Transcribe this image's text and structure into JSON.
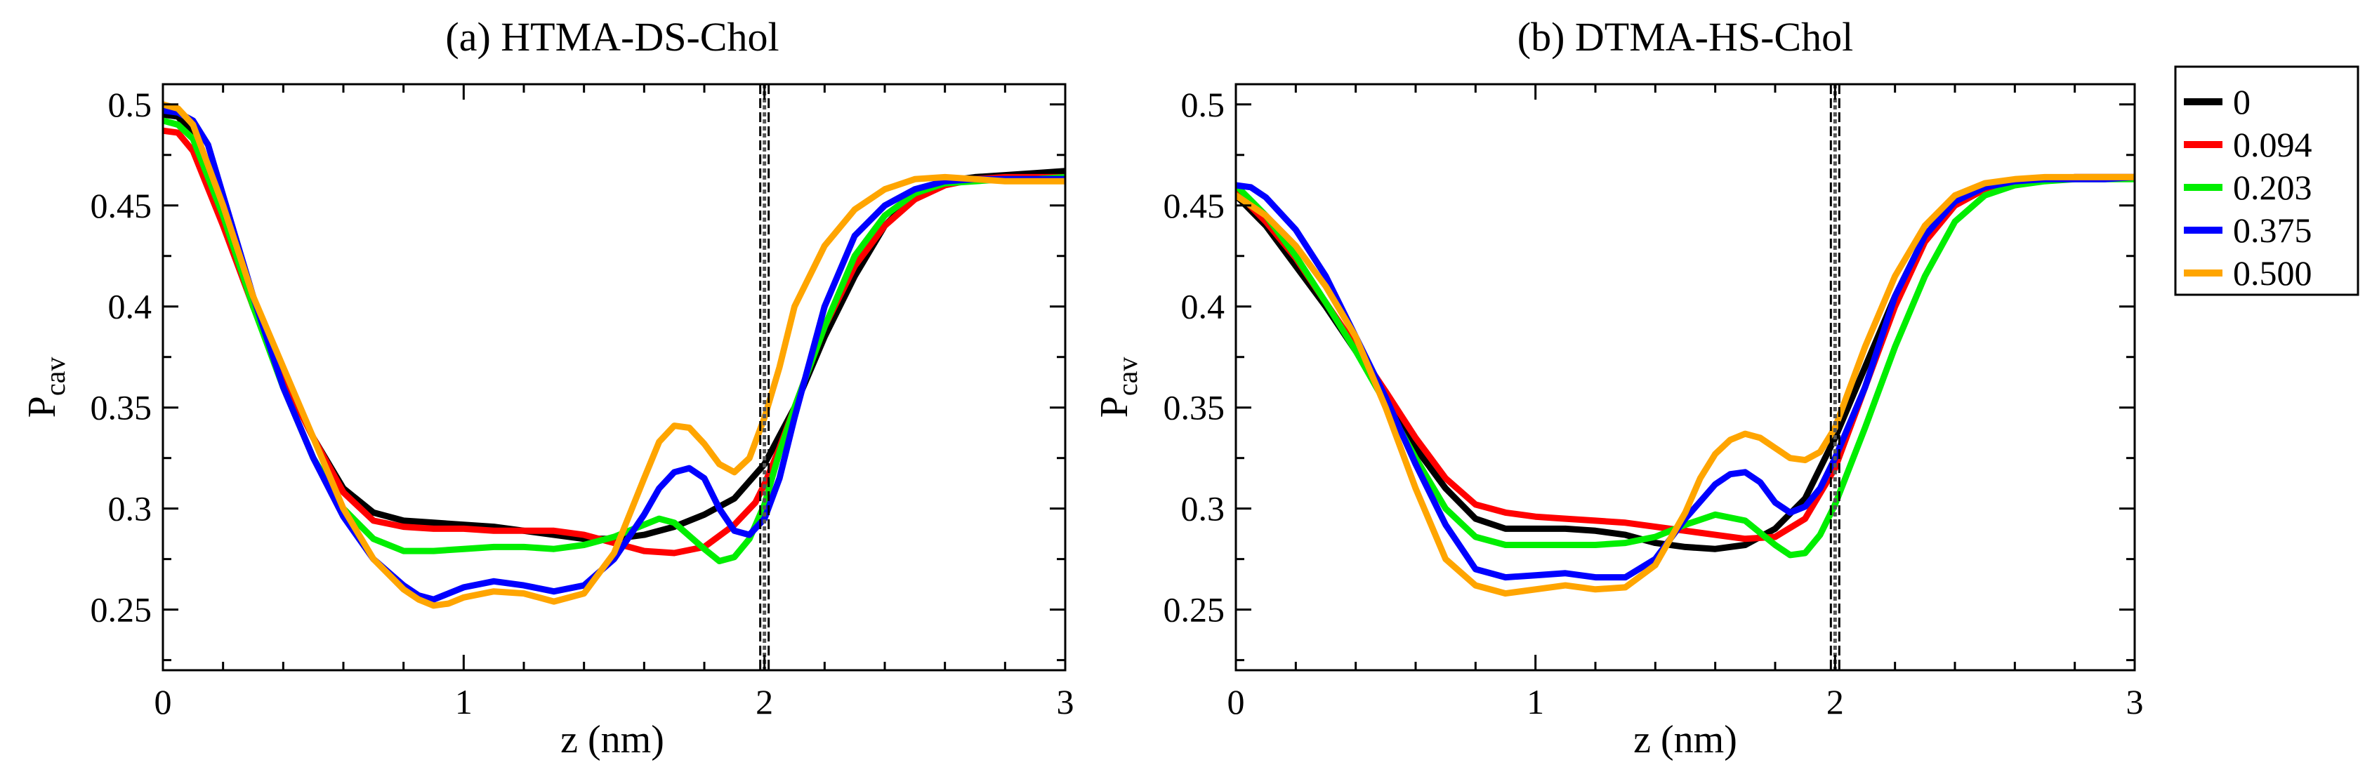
{
  "chart_data": [
    {
      "type": "line",
      "title": "(a) HTMA-DS-Chol",
      "xlabel": "z (nm)",
      "ylabel_main": "P",
      "ylabel_sub": "cav",
      "xlim": [
        0,
        3
      ],
      "ylim": [
        0.22,
        0.51
      ],
      "xticks": [
        0,
        1,
        2,
        3
      ],
      "xtick_labels": [
        "0",
        "1",
        "2",
        "3"
      ],
      "yticks": [
        0.25,
        0.3,
        0.35,
        0.4,
        0.45,
        0.5
      ],
      "ytick_labels": [
        "0.25",
        "0.3",
        "0.35",
        "0.4",
        "0.45",
        "0.5"
      ],
      "vline_x": 2.0,
      "series": [
        {
          "name": "0",
          "color": "#000000",
          "x": [
            0,
            0.05,
            0.1,
            0.2,
            0.3,
            0.4,
            0.5,
            0.6,
            0.7,
            0.8,
            0.9,
            1.0,
            1.1,
            1.2,
            1.3,
            1.4,
            1.5,
            1.6,
            1.7,
            1.8,
            1.9,
            2.0,
            2.1,
            2.2,
            2.3,
            2.4,
            2.5,
            2.6,
            2.7,
            2.8,
            2.9,
            3.0
          ],
          "y": [
            0.495,
            0.494,
            0.485,
            0.445,
            0.4,
            0.365,
            0.335,
            0.31,
            0.298,
            0.294,
            0.293,
            0.292,
            0.291,
            0.289,
            0.287,
            0.285,
            0.285,
            0.287,
            0.291,
            0.297,
            0.305,
            0.322,
            0.35,
            0.385,
            0.415,
            0.44,
            0.455,
            0.462,
            0.464,
            0.465,
            0.466,
            0.467
          ]
        },
        {
          "name": "0.094",
          "color": "#ff0000",
          "x": [
            0,
            0.05,
            0.1,
            0.2,
            0.3,
            0.4,
            0.5,
            0.6,
            0.7,
            0.8,
            0.9,
            1.0,
            1.1,
            1.2,
            1.3,
            1.4,
            1.5,
            1.6,
            1.7,
            1.8,
            1.9,
            1.97,
            2.0,
            2.05,
            2.1,
            2.2,
            2.3,
            2.4,
            2.5,
            2.6,
            2.7,
            2.8,
            2.9,
            3.0
          ],
          "y": [
            0.487,
            0.486,
            0.477,
            0.44,
            0.4,
            0.365,
            0.335,
            0.308,
            0.294,
            0.291,
            0.29,
            0.29,
            0.289,
            0.289,
            0.289,
            0.287,
            0.283,
            0.279,
            0.278,
            0.281,
            0.292,
            0.303,
            0.312,
            0.33,
            0.35,
            0.39,
            0.42,
            0.44,
            0.453,
            0.46,
            0.463,
            0.464,
            0.464,
            0.464
          ]
        },
        {
          "name": "0.203",
          "color": "#00ee00",
          "x": [
            0,
            0.05,
            0.1,
            0.2,
            0.3,
            0.4,
            0.5,
            0.6,
            0.7,
            0.8,
            0.9,
            1.0,
            1.1,
            1.2,
            1.3,
            1.4,
            1.5,
            1.6,
            1.65,
            1.7,
            1.8,
            1.85,
            1.9,
            1.95,
            2.0,
            2.05,
            2.1,
            2.2,
            2.3,
            2.4,
            2.5,
            2.6,
            2.7,
            2.8,
            2.9,
            3.0
          ],
          "y": [
            0.492,
            0.49,
            0.483,
            0.445,
            0.4,
            0.36,
            0.325,
            0.3,
            0.285,
            0.279,
            0.279,
            0.28,
            0.281,
            0.281,
            0.28,
            0.282,
            0.286,
            0.292,
            0.295,
            0.293,
            0.28,
            0.274,
            0.276,
            0.285,
            0.302,
            0.328,
            0.35,
            0.39,
            0.425,
            0.445,
            0.456,
            0.461,
            0.462,
            0.463,
            0.463,
            0.464
          ]
        },
        {
          "name": "0.375",
          "color": "#0000ff",
          "x": [
            0,
            0.05,
            0.1,
            0.15,
            0.2,
            0.3,
            0.4,
            0.5,
            0.6,
            0.7,
            0.8,
            0.85,
            0.9,
            0.95,
            1.0,
            1.1,
            1.2,
            1.3,
            1.4,
            1.5,
            1.6,
            1.65,
            1.7,
            1.75,
            1.8,
            1.85,
            1.9,
            1.95,
            2.0,
            2.05,
            2.1,
            2.2,
            2.3,
            2.4,
            2.5,
            2.6,
            2.7,
            2.8,
            2.9,
            3.0
          ],
          "y": [
            0.497,
            0.496,
            0.492,
            0.48,
            0.455,
            0.405,
            0.36,
            0.325,
            0.296,
            0.275,
            0.262,
            0.257,
            0.255,
            0.258,
            0.261,
            0.264,
            0.262,
            0.259,
            0.262,
            0.275,
            0.297,
            0.31,
            0.318,
            0.32,
            0.315,
            0.3,
            0.289,
            0.287,
            0.295,
            0.315,
            0.345,
            0.4,
            0.435,
            0.45,
            0.458,
            0.462,
            0.463,
            0.463,
            0.463,
            0.463
          ]
        },
        {
          "name": "0.500",
          "color": "#ffa500",
          "x": [
            0,
            0.05,
            0.1,
            0.2,
            0.3,
            0.4,
            0.5,
            0.6,
            0.7,
            0.8,
            0.85,
            0.9,
            0.95,
            1.0,
            1.1,
            1.2,
            1.3,
            1.4,
            1.5,
            1.6,
            1.65,
            1.7,
            1.75,
            1.8,
            1.85,
            1.9,
            1.95,
            2.0,
            2.05,
            2.1,
            2.2,
            2.3,
            2.4,
            2.5,
            2.6,
            2.7,
            2.8,
            2.9,
            3.0
          ],
          "y": [
            0.5,
            0.498,
            0.49,
            0.45,
            0.405,
            0.37,
            0.335,
            0.3,
            0.275,
            0.26,
            0.255,
            0.252,
            0.253,
            0.256,
            0.259,
            0.258,
            0.254,
            0.258,
            0.278,
            0.315,
            0.333,
            0.341,
            0.34,
            0.332,
            0.322,
            0.318,
            0.325,
            0.345,
            0.37,
            0.4,
            0.43,
            0.448,
            0.458,
            0.463,
            0.464,
            0.463,
            0.462,
            0.462,
            0.462
          ]
        }
      ]
    },
    {
      "type": "line",
      "title": "(b) DTMA-HS-Chol",
      "xlabel": "z (nm)",
      "ylabel_main": "P",
      "ylabel_sub": "cav",
      "xlim": [
        0,
        3
      ],
      "ylim": [
        0.22,
        0.51
      ],
      "xticks": [
        0,
        1,
        2,
        3
      ],
      "xtick_labels": [
        "0",
        "1",
        "2",
        "3"
      ],
      "yticks": [
        0.25,
        0.3,
        0.35,
        0.4,
        0.45,
        0.5
      ],
      "ytick_labels": [
        "0.25",
        "0.3",
        "0.35",
        "0.4",
        "0.45",
        "0.5"
      ],
      "vline_x": 2.0,
      "series": [
        {
          "name": "0",
          "color": "#000000",
          "x": [
            0,
            0.1,
            0.2,
            0.3,
            0.4,
            0.5,
            0.6,
            0.7,
            0.8,
            0.9,
            1.0,
            1.1,
            1.2,
            1.3,
            1.4,
            1.5,
            1.6,
            1.7,
            1.8,
            1.9,
            2.0,
            2.1,
            2.2,
            2.3,
            2.4,
            2.5,
            2.6,
            2.7,
            2.8,
            2.9,
            3.0
          ],
          "y": [
            0.455,
            0.44,
            0.42,
            0.4,
            0.378,
            0.357,
            0.33,
            0.31,
            0.295,
            0.29,
            0.29,
            0.29,
            0.289,
            0.287,
            0.283,
            0.281,
            0.28,
            0.282,
            0.29,
            0.305,
            0.335,
            0.37,
            0.405,
            0.435,
            0.452,
            0.459,
            0.462,
            0.463,
            0.464,
            0.464,
            0.464
          ]
        },
        {
          "name": "0.094",
          "color": "#ff0000",
          "x": [
            0,
            0.1,
            0.2,
            0.3,
            0.4,
            0.5,
            0.6,
            0.7,
            0.8,
            0.9,
            1.0,
            1.1,
            1.2,
            1.3,
            1.4,
            1.5,
            1.6,
            1.7,
            1.8,
            1.9,
            2.0,
            2.1,
            2.2,
            2.3,
            2.4,
            2.5,
            2.6,
            2.7,
            2.8,
            2.9,
            3.0
          ],
          "y": [
            0.457,
            0.442,
            0.424,
            0.402,
            0.38,
            0.358,
            0.335,
            0.315,
            0.302,
            0.298,
            0.296,
            0.295,
            0.294,
            0.293,
            0.291,
            0.289,
            0.287,
            0.285,
            0.286,
            0.295,
            0.32,
            0.36,
            0.4,
            0.432,
            0.45,
            0.458,
            0.462,
            0.463,
            0.464,
            0.464,
            0.464
          ]
        },
        {
          "name": "0.203",
          "color": "#00ee00",
          "x": [
            0,
            0.1,
            0.2,
            0.3,
            0.4,
            0.5,
            0.6,
            0.7,
            0.8,
            0.9,
            1.0,
            1.1,
            1.2,
            1.3,
            1.4,
            1.5,
            1.6,
            1.7,
            1.8,
            1.85,
            1.9,
            1.95,
            2.0,
            2.1,
            2.2,
            2.3,
            2.4,
            2.5,
            2.6,
            2.7,
            2.8,
            2.9,
            3.0
          ],
          "y": [
            0.46,
            0.445,
            0.425,
            0.402,
            0.378,
            0.352,
            0.325,
            0.3,
            0.286,
            0.282,
            0.282,
            0.282,
            0.282,
            0.283,
            0.286,
            0.292,
            0.297,
            0.294,
            0.282,
            0.277,
            0.278,
            0.287,
            0.302,
            0.34,
            0.38,
            0.415,
            0.442,
            0.455,
            0.46,
            0.462,
            0.463,
            0.463,
            0.463
          ]
        },
        {
          "name": "0.375",
          "color": "#0000ff",
          "x": [
            0,
            0.05,
            0.1,
            0.2,
            0.3,
            0.4,
            0.5,
            0.6,
            0.7,
            0.8,
            0.9,
            1.0,
            1.1,
            1.2,
            1.3,
            1.4,
            1.5,
            1.6,
            1.65,
            1.7,
            1.75,
            1.8,
            1.85,
            1.9,
            1.95,
            2.0,
            2.1,
            2.2,
            2.3,
            2.4,
            2.5,
            2.6,
            2.7,
            2.8,
            2.9,
            3.0
          ],
          "y": [
            0.46,
            0.459,
            0.454,
            0.438,
            0.415,
            0.385,
            0.355,
            0.322,
            0.292,
            0.27,
            0.266,
            0.267,
            0.268,
            0.266,
            0.266,
            0.275,
            0.295,
            0.312,
            0.317,
            0.318,
            0.313,
            0.303,
            0.298,
            0.301,
            0.31,
            0.325,
            0.36,
            0.405,
            0.435,
            0.452,
            0.459,
            0.462,
            0.463,
            0.463,
            0.463,
            0.464
          ]
        },
        {
          "name": "0.500",
          "color": "#ffa500",
          "x": [
            0,
            0.1,
            0.2,
            0.3,
            0.4,
            0.5,
            0.6,
            0.7,
            0.8,
            0.9,
            1.0,
            1.1,
            1.2,
            1.3,
            1.4,
            1.5,
            1.55,
            1.6,
            1.65,
            1.7,
            1.75,
            1.8,
            1.85,
            1.9,
            1.95,
            2.0,
            2.1,
            2.2,
            2.3,
            2.4,
            2.5,
            2.6,
            2.7,
            2.8,
            2.9,
            3.0
          ],
          "y": [
            0.455,
            0.445,
            0.43,
            0.41,
            0.385,
            0.35,
            0.31,
            0.275,
            0.262,
            0.258,
            0.26,
            0.262,
            0.26,
            0.261,
            0.272,
            0.298,
            0.315,
            0.327,
            0.334,
            0.337,
            0.335,
            0.33,
            0.325,
            0.324,
            0.328,
            0.34,
            0.38,
            0.415,
            0.44,
            0.455,
            0.461,
            0.463,
            0.464,
            0.464,
            0.464,
            0.464
          ]
        }
      ]
    }
  ],
  "legend": {
    "entries": [
      {
        "label": "0",
        "color": "#000000"
      },
      {
        "label": "0.094",
        "color": "#ff0000"
      },
      {
        "label": "0.203",
        "color": "#00ee00"
      },
      {
        "label": "0.375",
        "color": "#0000ff"
      },
      {
        "label": "0.500",
        "color": "#ffa500"
      }
    ]
  }
}
